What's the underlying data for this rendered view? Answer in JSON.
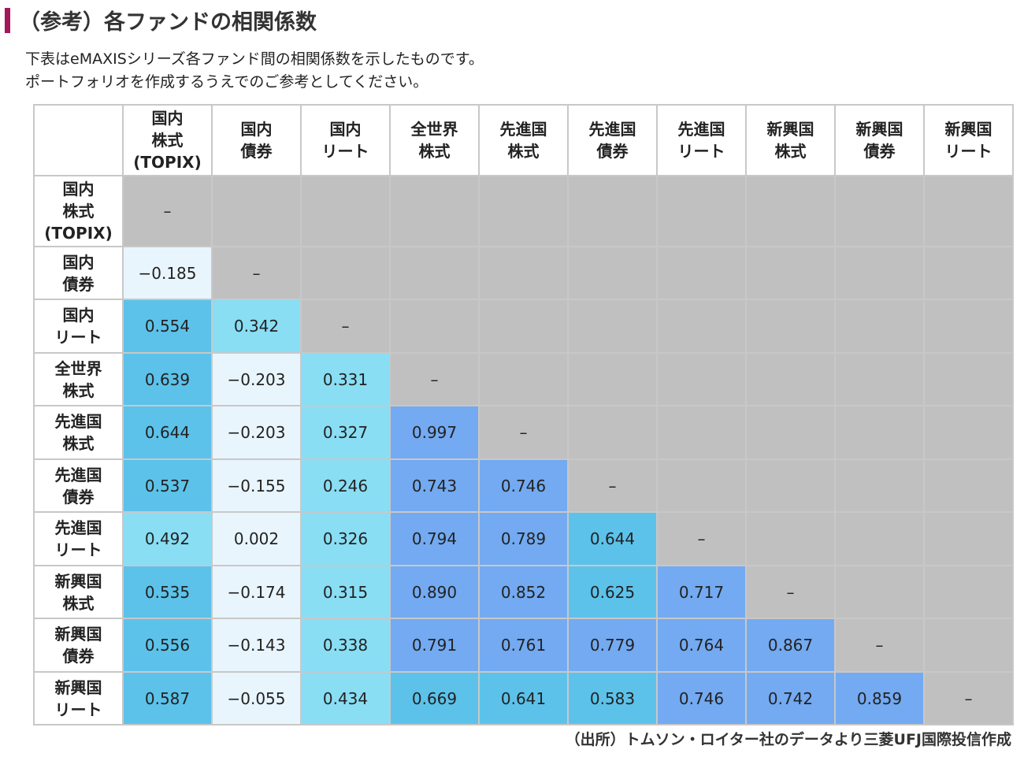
{
  "title": "（参考）各ファンドの相関係数",
  "description": [
    "下表はeMAXISシリーズ各ファンド間の相関係数を示したものです。",
    "ポートフォリオを作成するうえでのご参考としてください。"
  ],
  "source": "（出所）トムソン・ロイター社のデータより三菱UFJ国際投信作成",
  "colors": {
    "title_accent": "#a3195b",
    "empty": "#c0c0c0",
    "grid": "#c8c8c8"
  },
  "chart_data": {
    "type": "table",
    "title": "（参考）各ファンドの相関係数",
    "columns": [
      "国内\n株式\n(TOPIX)",
      "国内\n債券",
      "国内\nリート",
      "全世界\n株式",
      "先進国\n株式",
      "先進国\n債券",
      "先進国\nリート",
      "新興国\n株式",
      "新興国\n債券",
      "新興国\nリート"
    ],
    "rows": [
      "国内\n株式\n(TOPIX)",
      "国内\n債券",
      "国内\nリート",
      "全世界\n株式",
      "先進国\n株式",
      "先進国\n債券",
      "先進国\nリート",
      "新興国\n株式",
      "新興国\n債券",
      "新興国\nリート"
    ],
    "diagonal_label": "–",
    "values": [
      [],
      [
        "-0.185"
      ],
      [
        "0.554",
        "0.342"
      ],
      [
        "0.639",
        "-0.203",
        "0.331"
      ],
      [
        "0.644",
        "-0.203",
        "0.327",
        "0.997"
      ],
      [
        "0.537",
        "-0.155",
        "0.246",
        "0.743",
        "0.746"
      ],
      [
        "0.492",
        "0.002",
        "0.326",
        "0.794",
        "0.789",
        "0.644"
      ],
      [
        "0.535",
        "-0.174",
        "0.315",
        "0.890",
        "0.852",
        "0.625",
        "0.717"
      ],
      [
        "0.556",
        "-0.143",
        "0.338",
        "0.791",
        "0.761",
        "0.779",
        "0.764",
        "0.867"
      ],
      [
        "0.587",
        "-0.055",
        "0.434",
        "0.669",
        "0.641",
        "0.583",
        "0.746",
        "0.742",
        "0.859"
      ]
    ],
    "color_scale": [
      {
        "max": 0.2,
        "color": "#e9f5fd"
      },
      {
        "max": 0.5,
        "color": "#89def4"
      },
      {
        "max": 0.7,
        "color": "#5cc2ea"
      },
      {
        "max": 1.0,
        "color": "#73aaf1"
      }
    ]
  }
}
